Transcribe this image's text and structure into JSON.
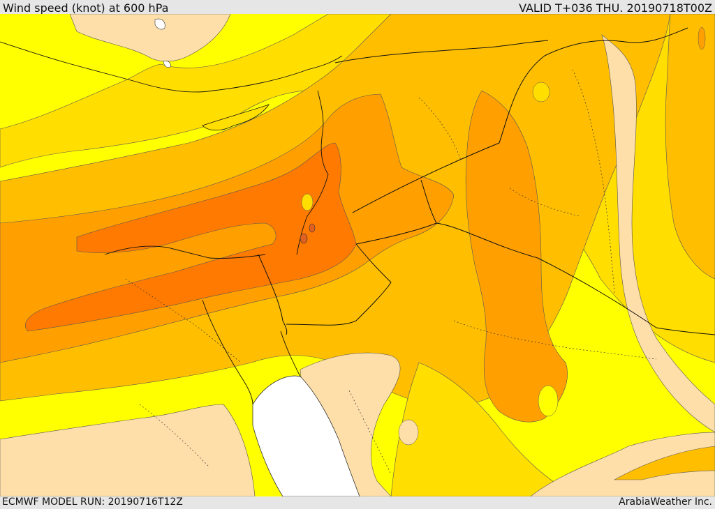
{
  "header": {
    "title": "Wind speed (knot) at 600 hPa",
    "valid": "VALID T+036 THU. 20190718T00Z"
  },
  "footer": {
    "model_run": "ECMWF MODEL RUN: 20190716T12Z",
    "credit": "ArabiaWeather Inc."
  },
  "palette": {
    "land_low": "#ffdfa9",
    "yellow": "#ffff00",
    "gold": "#ffde00",
    "amber": "#ffbf00",
    "orange": "#ffa000",
    "dark_orange": "#ff7a00",
    "sea_red_sea": "#ffffff"
  }
}
